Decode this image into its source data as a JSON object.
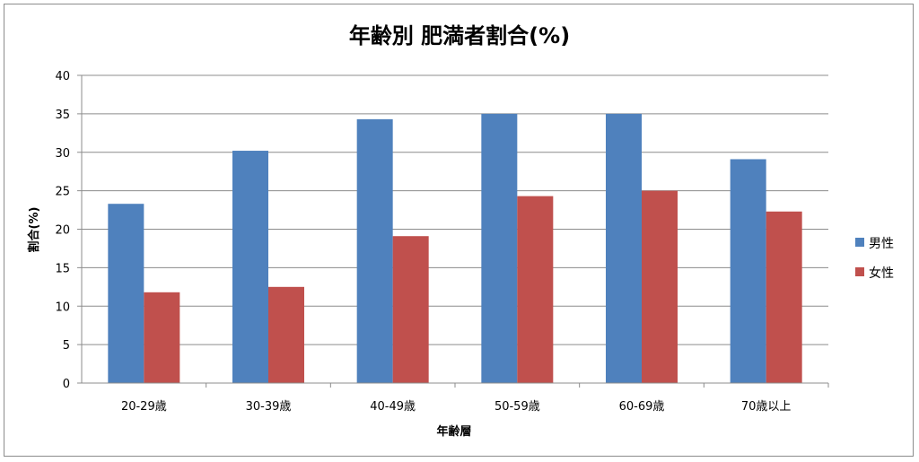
{
  "chart_data": {
    "type": "bar",
    "title": "年齢別 肥満者割合(%)",
    "xlabel": "年齢層",
    "ylabel": "割合(%)",
    "ylim": [
      0,
      40
    ],
    "yticks": [
      0,
      5,
      10,
      15,
      20,
      25,
      30,
      35,
      40
    ],
    "grid": true,
    "legend_position": "right",
    "categories": [
      "20-29歳",
      "30-39歳",
      "40-49歳",
      "50-59歳",
      "60-69歳",
      "70歳以上"
    ],
    "series": [
      {
        "name": "男性",
        "color": "#4f81bd",
        "values": [
          23.3,
          30.2,
          34.3,
          35.0,
          35.0,
          29.1
        ]
      },
      {
        "name": "女性",
        "color": "#c0504d",
        "values": [
          11.8,
          12.5,
          19.1,
          24.3,
          25.0,
          22.3
        ]
      }
    ]
  }
}
